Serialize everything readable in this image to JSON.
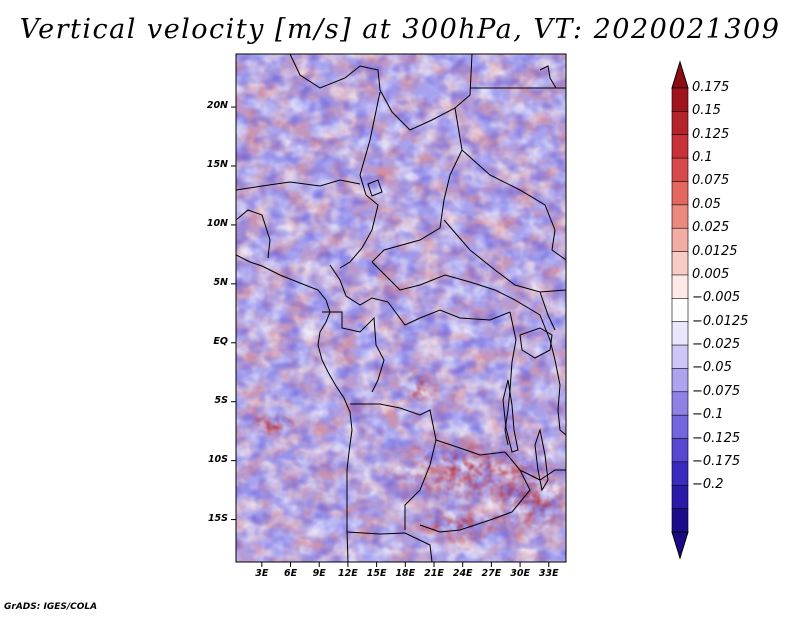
{
  "title": "Vertical velocity [m/s] at 300hPa, VT: 2020021309",
  "credit": "GrADS: IGES/COLA",
  "map": {
    "lat_ticks": [
      "20N",
      "15N",
      "10N",
      "5N",
      "EQ",
      "5S",
      "10S",
      "15S"
    ],
    "lat_values": [
      20,
      15,
      10,
      5,
      0,
      -5,
      -10,
      -15
    ],
    "lon_ticks": [
      "3E",
      "6E",
      "9E",
      "12E",
      "15E",
      "18E",
      "21E",
      "24E",
      "27E",
      "30E",
      "33E"
    ],
    "lon_values": [
      3,
      6,
      9,
      12,
      15,
      18,
      21,
      24,
      27,
      30,
      33
    ],
    "lon_range": [
      0.3,
      34.8
    ],
    "lat_range": [
      -18.6,
      24.5
    ]
  },
  "colorbar": {
    "labels": [
      "0.175",
      "0.15",
      "0.125",
      "0.1",
      "0.075",
      "0.05",
      "0.025",
      "0.0125",
      "0.005",
      "−0.005",
      "−0.0125",
      "−0.025",
      "−0.05",
      "−0.075",
      "−0.1",
      "−0.125",
      "−0.175",
      "−0.2"
    ],
    "colors": [
      "#a0141e",
      "#b4222a",
      "#c8303a",
      "#d84a4c",
      "#e4675f",
      "#ec8a80",
      "#f3ada3",
      "#f8cdc6",
      "#fdeae6",
      "#ffffff",
      "#eae6fb",
      "#cdc6f6",
      "#ada4ef",
      "#8e82e6",
      "#7265dd",
      "#5648cf",
      "#3a2cc0",
      "#2a1ba8",
      "#1a0e8c"
    ],
    "top_color": "#8c0e14",
    "bottom_color": "#1a0a86"
  }
}
